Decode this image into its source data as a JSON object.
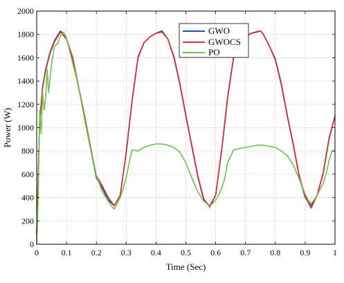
{
  "chart_data": {
    "type": "line",
    "title": "",
    "xlabel": "Time (Sec)",
    "ylabel": "Power (W)",
    "xlim": [
      0,
      1
    ],
    "ylim": [
      0,
      2000
    ],
    "x_ticks": [
      0,
      0.1,
      0.2,
      0.3,
      0.4,
      0.5,
      0.6,
      0.7,
      0.8,
      0.9,
      1
    ],
    "x_tick_labels": [
      "0",
      "0.1",
      "0.2",
      "0.3",
      "0.4",
      "0.5",
      "0.6",
      "0.7",
      "0.8",
      "0.9",
      "1"
    ],
    "y_ticks": [
      0,
      200,
      400,
      600,
      800,
      1000,
      1200,
      1400,
      1600,
      1800,
      2000
    ],
    "y_tick_labels": [
      "0",
      "200",
      "400",
      "600",
      "800",
      "1000",
      "1200",
      "1400",
      "1600",
      "1800",
      "2000"
    ],
    "grid": true,
    "legend_position": "top-right",
    "series": [
      {
        "name": "GWO",
        "color": "#1f4fb5",
        "x": [
          0,
          0.005,
          0.01,
          0.02,
          0.03,
          0.045,
          0.06,
          0.08,
          0.1,
          0.12,
          0.14,
          0.16,
          0.18,
          0.2,
          0.22,
          0.24,
          0.26,
          0.28,
          0.3,
          0.32,
          0.34,
          0.36,
          0.38,
          0.4,
          0.42,
          0.44,
          0.46,
          0.48,
          0.5,
          0.52,
          0.54,
          0.56,
          0.58,
          0.6,
          0.62,
          0.64,
          0.66,
          0.68,
          0.7,
          0.72,
          0.74,
          0.75,
          0.76,
          0.78,
          0.8,
          0.82,
          0.84,
          0.86,
          0.88,
          0.9,
          0.92,
          0.94,
          0.96,
          0.98,
          1.0
        ],
        "y": [
          100,
          600,
          1050,
          1350,
          1500,
          1650,
          1750,
          1830,
          1760,
          1600,
          1350,
          1100,
          830,
          570,
          480,
          380,
          330,
          420,
          780,
          1230,
          1600,
          1730,
          1780,
          1810,
          1830,
          1760,
          1600,
          1370,
          1100,
          840,
          580,
          380,
          330,
          420,
          800,
          1250,
          1600,
          1720,
          1780,
          1810,
          1825,
          1830,
          1800,
          1700,
          1580,
          1370,
          1100,
          850,
          580,
          400,
          330,
          420,
          600,
          900,
          1100
        ]
      },
      {
        "name": "GWOCS",
        "color": "#e8262b",
        "x": [
          0,
          0.005,
          0.01,
          0.02,
          0.03,
          0.045,
          0.06,
          0.08,
          0.1,
          0.12,
          0.14,
          0.16,
          0.18,
          0.2,
          0.22,
          0.24,
          0.26,
          0.28,
          0.3,
          0.32,
          0.34,
          0.36,
          0.38,
          0.4,
          0.42,
          0.44,
          0.46,
          0.48,
          0.5,
          0.52,
          0.54,
          0.56,
          0.58,
          0.6,
          0.62,
          0.64,
          0.66,
          0.68,
          0.7,
          0.72,
          0.74,
          0.75,
          0.76,
          0.78,
          0.8,
          0.82,
          0.84,
          0.86,
          0.88,
          0.9,
          0.92,
          0.94,
          0.96,
          0.98,
          1.0
        ],
        "y": [
          80,
          580,
          1040,
          1340,
          1490,
          1640,
          1740,
          1820,
          1760,
          1610,
          1360,
          1110,
          840,
          590,
          500,
          400,
          330,
          420,
          790,
          1240,
          1610,
          1730,
          1780,
          1810,
          1820,
          1760,
          1610,
          1380,
          1110,
          850,
          590,
          390,
          320,
          420,
          810,
          1260,
          1610,
          1720,
          1780,
          1810,
          1820,
          1830,
          1800,
          1700,
          1590,
          1380,
          1110,
          860,
          590,
          410,
          310,
          420,
          610,
          910,
          1100
        ]
      },
      {
        "name": "PO",
        "color": "#6cc24a",
        "x": [
          0,
          0.005,
          0.01,
          0.015,
          0.02,
          0.025,
          0.03,
          0.035,
          0.04,
          0.05,
          0.06,
          0.07,
          0.08,
          0.09,
          0.1,
          0.12,
          0.14,
          0.16,
          0.18,
          0.2,
          0.22,
          0.24,
          0.25,
          0.26,
          0.27,
          0.28,
          0.29,
          0.3,
          0.31,
          0.32,
          0.34,
          0.36,
          0.38,
          0.4,
          0.42,
          0.44,
          0.46,
          0.48,
          0.5,
          0.52,
          0.54,
          0.56,
          0.58,
          0.59,
          0.6,
          0.61,
          0.62,
          0.63,
          0.64,
          0.66,
          0.68,
          0.7,
          0.72,
          0.74,
          0.76,
          0.78,
          0.8,
          0.82,
          0.84,
          0.86,
          0.88,
          0.9,
          0.91,
          0.92,
          0.93,
          0.94,
          0.95,
          0.96,
          0.97,
          0.98,
          0.99,
          1.0
        ],
        "y": [
          0,
          400,
          1150,
          950,
          1300,
          1150,
          1250,
          1500,
          1300,
          1550,
          1700,
          1720,
          1790,
          1820,
          1770,
          1560,
          1360,
          1080,
          820,
          590,
          450,
          370,
          330,
          300,
          350,
          400,
          480,
          570,
          700,
          810,
          800,
          830,
          850,
          860,
          860,
          850,
          830,
          790,
          700,
          570,
          450,
          370,
          330,
          350,
          380,
          420,
          480,
          560,
          700,
          810,
          820,
          830,
          840,
          850,
          850,
          840,
          830,
          800,
          760,
          680,
          560,
          430,
          380,
          350,
          380,
          420,
          470,
          520,
          600,
          720,
          800,
          800
        ]
      }
    ]
  }
}
